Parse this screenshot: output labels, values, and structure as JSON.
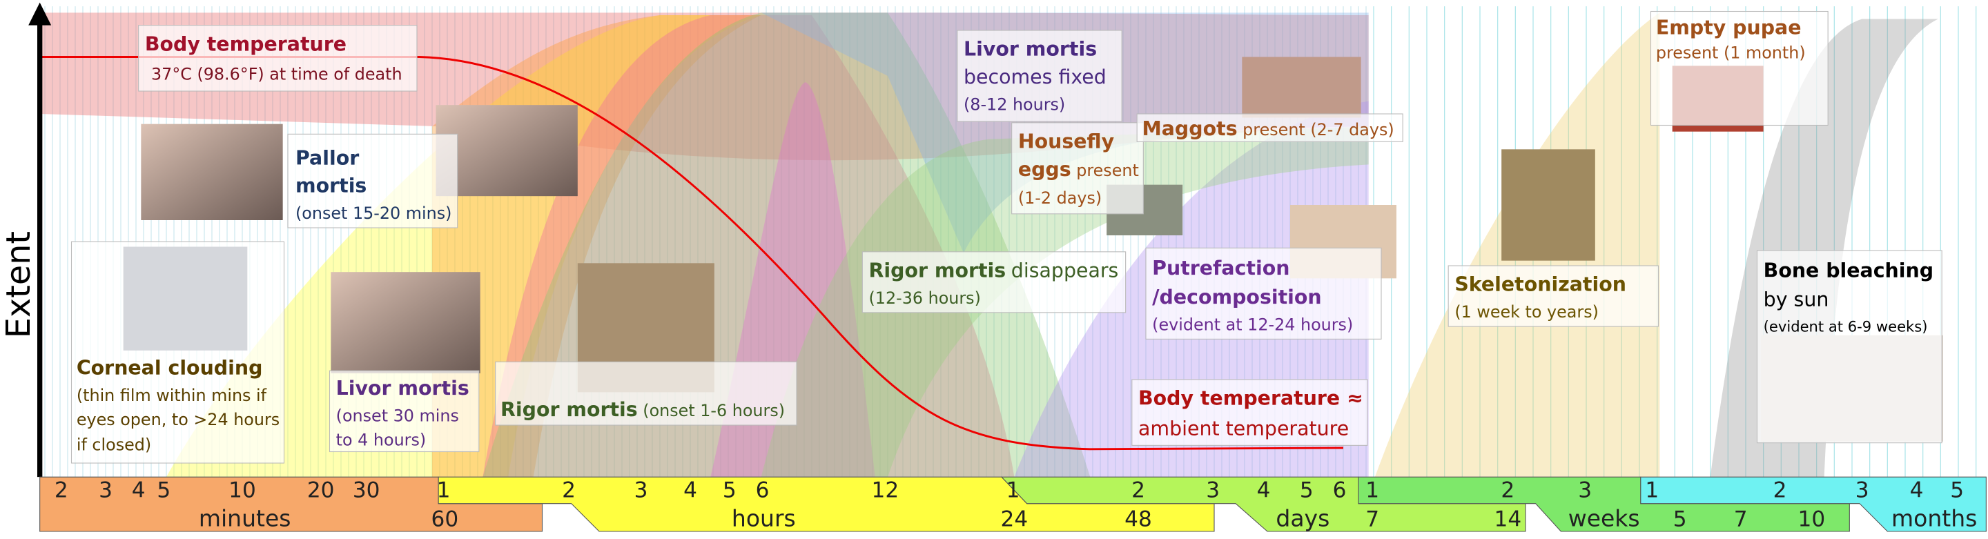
{
  "y_axis_label": "Extent",
  "annotations": {
    "body_temperature": {
      "title": "Body temperature",
      "detail": "37°C (98.6°F) at time of death"
    },
    "pallor_mortis": {
      "title": [
        "Pallor",
        "mortis"
      ],
      "detail": "(onset 15-20 mins)"
    },
    "corneal_clouding": {
      "title": "Corneal clouding",
      "detail": [
        "(thin film within mins if",
        "eyes open, to >24 hours",
        "if closed)"
      ]
    },
    "livor_mortis_onset": {
      "title": "Livor mortis",
      "detail": [
        "(onset 30 mins",
        "to 4 hours)"
      ]
    },
    "rigor_mortis_onset": {
      "title": "Rigor mortis",
      "detail": "(onset 1-6 hours)"
    },
    "livor_mortis_fixed": {
      "title": "Livor mortis",
      "detail": [
        "becomes fixed",
        "(8-12 hours)"
      ]
    },
    "housefly_eggs": {
      "title": [
        "Housefly",
        "eggs"
      ],
      "detail": [
        "present",
        "(1-2 days)"
      ]
    },
    "maggots": {
      "title": "Maggots",
      "detail": "present (2-7 days)"
    },
    "rigor_mortis_disappears": {
      "title": "Rigor mortis",
      "detail": [
        "disappears",
        "(12-36 hours)"
      ]
    },
    "putrefaction": {
      "title": [
        "Putrefaction",
        "/decomposition"
      ],
      "detail": "(evident at 12-24 hours)"
    },
    "body_temperature_ambient": {
      "title": "Body temperature ≈",
      "detail": "ambient temperature"
    },
    "skeletonization": {
      "title": "Skeletonization",
      "detail": "(1 week to years)"
    },
    "empty_pupae": {
      "title": "Empty pupae",
      "detail": "present (1 month)"
    },
    "bone_bleaching": {
      "title": [
        "Bone bleaching",
        "by sun"
      ],
      "detail": "(evident at 6-9 weeks)"
    }
  },
  "timeline": {
    "upper_ticks": [
      2,
      3,
      4,
      5,
      10,
      20,
      30,
      1,
      2,
      3,
      4,
      5,
      6,
      12,
      1,
      2,
      3,
      4,
      5,
      6,
      1,
      2,
      3,
      1,
      2,
      3,
      4,
      5
    ],
    "lower_ticks": [
      60,
      24,
      48,
      7,
      14,
      5,
      7,
      10
    ],
    "units": [
      "minutes",
      "hours",
      "days",
      "weeks",
      "months"
    ]
  }
}
